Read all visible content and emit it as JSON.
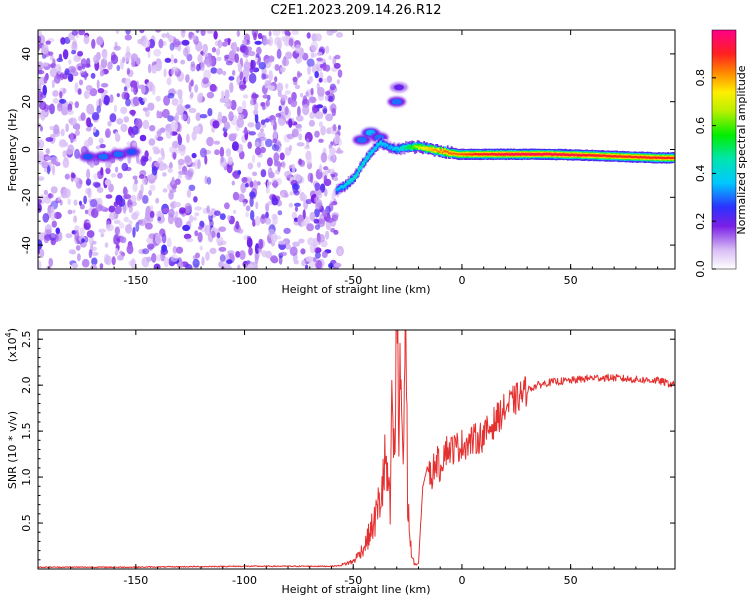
{
  "title": "C2E1.2023.209.14.26.R12",
  "colors": {
    "snr_line": "#e53030",
    "spectro_low": "#c9a6f5",
    "spectro_mid": "#6b1de0",
    "frame": "#000000"
  },
  "chart_data": [
    {
      "type": "heatmap",
      "xlabel": "Height of straight line (km)",
      "ylabel": "Frequency (Hz)",
      "xlim": [
        -195,
        98
      ],
      "ylim": [
        -50,
        50
      ],
      "xticks": [
        -150,
        -100,
        -50,
        0,
        50
      ],
      "xtick_labels": [
        "-150",
        "-100",
        "-50",
        "0",
        "50"
      ],
      "yticks": [
        -40,
        -20,
        0,
        20,
        40
      ],
      "ytick_labels": [
        "-40",
        "-20",
        "0",
        "20",
        "40"
      ],
      "colorbar": {
        "label": "Normalized spectral amplitude",
        "range": [
          0,
          1
        ],
        "ticks": [
          0.0,
          0.2,
          0.4,
          0.6,
          0.8
        ],
        "tick_labels": [
          "0.0",
          "0.2",
          "0.4",
          "0.6",
          "0.8"
        ]
      },
      "noise_region_x": [
        -195,
        -56
      ],
      "signal_trace": [
        {
          "x": -58,
          "y": -17,
          "a": 0.35
        },
        {
          "x": -54,
          "y": -15,
          "a": 0.4
        },
        {
          "x": -50,
          "y": -12,
          "a": 0.45
        },
        {
          "x": -46,
          "y": -6,
          "a": 0.45
        },
        {
          "x": -42,
          "y": -1,
          "a": 0.4
        },
        {
          "x": -38,
          "y": 3,
          "a": 0.4
        },
        {
          "x": -34,
          "y": 1,
          "a": 0.35
        },
        {
          "x": -30,
          "y": 0,
          "a": 0.4
        },
        {
          "x": -26,
          "y": 1,
          "a": 0.5
        },
        {
          "x": -20,
          "y": 1,
          "a": 0.7
        },
        {
          "x": -14,
          "y": 0,
          "a": 0.8
        },
        {
          "x": -8,
          "y": -1,
          "a": 0.85
        },
        {
          "x": -2,
          "y": -2,
          "a": 0.85
        },
        {
          "x": 5,
          "y": -2,
          "a": 0.9
        },
        {
          "x": 20,
          "y": -2,
          "a": 0.95
        },
        {
          "x": 40,
          "y": -2,
          "a": 0.95
        },
        {
          "x": 60,
          "y": -2.5,
          "a": 0.92
        },
        {
          "x": 75,
          "y": -3,
          "a": 0.9
        },
        {
          "x": 90,
          "y": -3.5,
          "a": 0.9
        },
        {
          "x": 97,
          "y": -3.5,
          "a": 0.9
        }
      ],
      "secondary_blobs": [
        {
          "x": -46,
          "y": 4,
          "a": 0.3
        },
        {
          "x": -42,
          "y": 7,
          "a": 0.35
        },
        {
          "x": -38,
          "y": 5,
          "a": 0.3
        },
        {
          "x": -30,
          "y": 20,
          "a": 0.3
        },
        {
          "x": -29,
          "y": 26,
          "a": 0.2
        },
        {
          "x": -172,
          "y": -3,
          "a": 0.28
        },
        {
          "x": -165,
          "y": -3,
          "a": 0.3
        },
        {
          "x": -158,
          "y": -2,
          "a": 0.3
        },
        {
          "x": -152,
          "y": -1,
          "a": 0.28
        }
      ]
    },
    {
      "type": "line",
      "xlabel": "Height of straight line (km)",
      "ylabel": "SNR (10 * v/v)",
      "yscale_label": "(x10",
      "yscale_exp": "4",
      "yscale_close": ")",
      "xlim": [
        -195,
        98
      ],
      "ylim": [
        0,
        2.6
      ],
      "xticks": [
        -150,
        -100,
        -50,
        0,
        50
      ],
      "xtick_labels": [
        "-150",
        "-100",
        "-50",
        "0",
        "50"
      ],
      "yticks": [
        0.5,
        1.0,
        1.5,
        2.0,
        2.5
      ],
      "ytick_labels": [
        "0.5",
        "1.0",
        "1.5",
        "2.0",
        "2.5"
      ],
      "series": [
        {
          "x": [
            -195,
            -150,
            -100,
            -60,
            -55,
            -50,
            -45,
            -40,
            -37,
            -35,
            -33,
            -32,
            -31,
            -30,
            -29,
            -28,
            -27,
            -26,
            -25,
            -24,
            -23,
            -22,
            -21,
            -20,
            -18,
            -16,
            -14,
            -12,
            -10,
            -8,
            -5,
            0,
            5,
            10,
            15,
            20,
            25,
            30,
            35,
            40,
            50,
            60,
            70,
            80,
            90,
            98
          ],
          "y": [
            0.02,
            0.02,
            0.03,
            0.03,
            0.04,
            0.07,
            0.2,
            0.45,
            0.7,
            1.0,
            0.5,
            1.6,
            0.8,
            2.6,
            1.2,
            1.9,
            0.9,
            2.48,
            0.7,
            0.3,
            0.1,
            0.06,
            0.05,
            0.05,
            0.9,
            1.1,
            1.0,
            1.2,
            1.1,
            1.3,
            1.3,
            1.35,
            1.4,
            1.45,
            1.6,
            1.75,
            1.85,
            1.95,
            2.0,
            2.03,
            2.05,
            2.08,
            2.08,
            2.06,
            2.05,
            2.0
          ]
        }
      ]
    }
  ]
}
